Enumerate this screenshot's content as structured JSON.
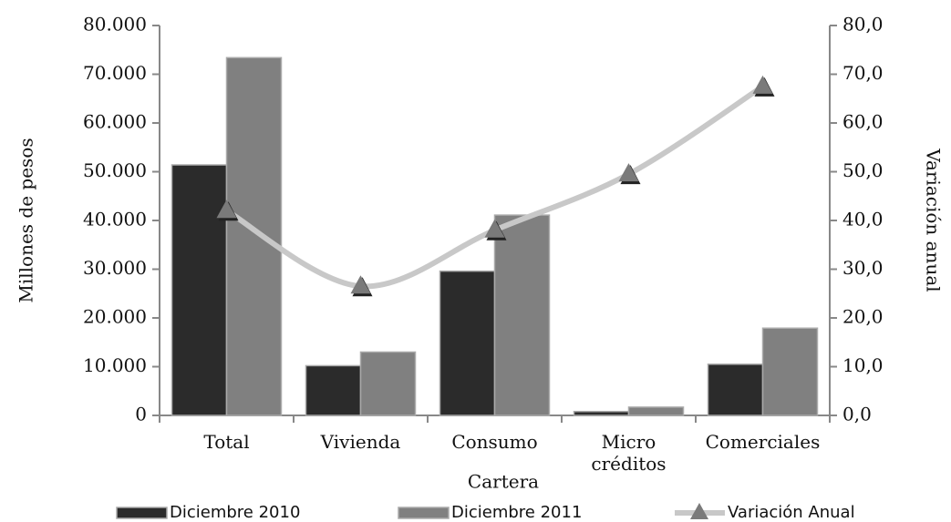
{
  "chart_data": {
    "type": "bar",
    "x_label": "Cartera",
    "y_label": "Millones de pesos",
    "y2_label": "Variación anual",
    "categories": [
      "Total",
      "Vivienda",
      "Consumo",
      "Micro créditos",
      "Comerciales"
    ],
    "series": [
      {
        "name": "Diciembre 2010",
        "color": "#2b2b2b",
        "values": [
          51400,
          10200,
          29600,
          800,
          10500
        ]
      },
      {
        "name": "Diciembre 2011",
        "color": "#808080",
        "values": [
          73400,
          13000,
          41100,
          1700,
          17900
        ]
      },
      {
        "name": "Variación Anual",
        "type": "line",
        "axis": "y2",
        "color": "#c8c8c8",
        "marker_color": "#7a7a7a",
        "values": [
          42.0,
          26.5,
          38.0,
          49.5,
          67.5
        ]
      }
    ],
    "ylim": [
      0,
      80000
    ],
    "yticks": [
      0,
      {
        "value": 10000,
        "label": "10.000"
      },
      {
        "value": 20000,
        "label": "20.000"
      },
      {
        "value": 30000,
        "label": "30.000"
      },
      {
        "value": 40000,
        "label": "40.000"
      },
      {
        "value": 50000,
        "label": "50.000"
      },
      {
        "value": 60000,
        "label": "60.000"
      },
      {
        "value": 70000,
        "label": "70.000"
      },
      {
        "value": 80000,
        "label": "80.000"
      }
    ],
    "y2lim": [
      0,
      80
    ],
    "y2ticks": [
      {
        "value": 0,
        "label": "0,0"
      },
      {
        "value": 10,
        "label": "10,0"
      },
      {
        "value": 20,
        "label": "20,0"
      },
      {
        "value": 30,
        "label": "30,0"
      },
      {
        "value": 40,
        "label": "40,0"
      },
      {
        "value": 50,
        "label": "50,0"
      },
      {
        "value": 60,
        "label": "60,0"
      },
      {
        "value": 70,
        "label": "70,0"
      },
      {
        "value": 80,
        "label": "80,0"
      }
    ],
    "grid": false,
    "legend": "bottom"
  }
}
